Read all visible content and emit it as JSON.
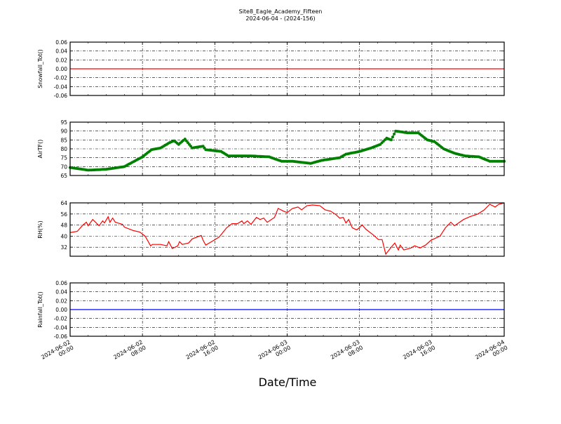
{
  "title": "Site8_Eagle_Academy_Fifteen",
  "subtitle": "2024-06-04 - (2024-156)",
  "xlabel": "Date/Time",
  "x_ticks": [
    {
      "hour": 0,
      "line1": "2024-06-02",
      "line2": "00:00"
    },
    {
      "hour": 8,
      "line1": "2024-06-02",
      "line2": "08:00"
    },
    {
      "hour": 16,
      "line1": "2024-06-02",
      "line2": "16:00"
    },
    {
      "hour": 24,
      "line1": "2024-06-03",
      "line2": "00:00"
    },
    {
      "hour": 32,
      "line1": "2024-06-03",
      "line2": "08:00"
    },
    {
      "hour": 40,
      "line1": "2024-06-03",
      "line2": "16:00"
    },
    {
      "hour": 48,
      "line1": "2024-06-04",
      "line2": "00:00"
    }
  ],
  "chart_data": [
    {
      "type": "line",
      "ylabel": "Snowfall_Tot()",
      "color": "#ff0000",
      "marker": false,
      "xlim": [
        0,
        48
      ],
      "ylim": [
        -0.06,
        0.06
      ],
      "yticks": [
        "0.06",
        "0.04",
        "0.02",
        "0.00",
        "-0.02",
        "-0.04",
        "-0.06"
      ],
      "grid": true,
      "x": [
        0,
        48
      ],
      "y": [
        0,
        0
      ]
    },
    {
      "type": "line",
      "ylabel": "AirTF()",
      "color": "#008000",
      "marker": true,
      "xlim": [
        0,
        48
      ],
      "ylim": [
        65,
        95
      ],
      "yticks": [
        "95",
        "90",
        "85",
        "80",
        "75",
        "70",
        "65"
      ],
      "grid": true,
      "x": [
        0,
        2,
        4,
        6,
        8,
        9,
        10,
        11,
        11.5,
        12,
        12.7,
        13.5,
        14.7,
        15,
        16.7,
        17.5,
        20,
        22,
        23.4,
        24.6,
        26.6,
        27.8,
        29.8,
        30.5,
        32,
        33.3,
        34.3,
        35,
        35.5,
        36,
        37.3,
        38.5,
        39.5,
        40.3,
        41.3,
        42.5,
        43.7,
        45.2,
        46.4,
        48
      ],
      "y": [
        69.5,
        68,
        68.5,
        70,
        75.5,
        79.5,
        80.5,
        83.5,
        84.5,
        82.5,
        85.5,
        80.5,
        81.5,
        79.5,
        78.5,
        76,
        76,
        75.5,
        73,
        73,
        71.8,
        73.5,
        75,
        77,
        78.5,
        80.5,
        82.5,
        86,
        85,
        90,
        89,
        89,
        85,
        84,
        80,
        77.5,
        76,
        75.5,
        73,
        73
      ]
    },
    {
      "type": "line",
      "ylabel": "RH(%)",
      "color": "#ff0000",
      "marker": false,
      "xlim": [
        0,
        48
      ],
      "ylim": [
        25.5,
        64
      ],
      "yticks": [
        "64",
        "56",
        "48",
        "40",
        "32"
      ],
      "grid": true,
      "x": [
        0,
        0.8,
        1.4,
        1.8,
        2,
        2.5,
        3.2,
        3.6,
        3.8,
        4.2,
        4.4,
        4.7,
        5,
        5.8,
        6,
        7,
        7.7,
        8.3,
        8.9,
        9.1,
        10,
        10.7,
        10.9,
        11.3,
        11.9,
        12.1,
        12.4,
        13.1,
        13.5,
        14.5,
        14.7,
        15,
        15.9,
        16.5,
        17.3,
        17.9,
        18.5,
        19,
        19.2,
        19.6,
        20,
        20.6,
        21,
        21.4,
        21.8,
        22.6,
        23,
        23.6,
        24,
        24.6,
        25.2,
        25.6,
        26.2,
        26.8,
        27.6,
        28.2,
        28.8,
        29.4,
        29.8,
        30.2,
        30.5,
        30.8,
        31.2,
        31.7,
        32.3,
        32.7,
        33.5,
        34.1,
        34.5,
        34.9,
        35.5,
        35.9,
        36.3,
        36.5,
        36.9,
        37.7,
        38.1,
        38.7,
        39.3,
        39.9,
        40.9,
        41.5,
        42.1,
        42.5,
        43.5,
        44.2,
        45.1,
        45.8,
        46.4,
        47,
        47.4,
        48
      ],
      "y": [
        42.5,
        43.5,
        48,
        50,
        47.5,
        52,
        47.5,
        51,
        49.5,
        54,
        50,
        53,
        50,
        48.5,
        46.5,
        44,
        43,
        40,
        33,
        34,
        34,
        33,
        36,
        31,
        33,
        36,
        34,
        35,
        38,
        40.5,
        37,
        33.5,
        37,
        39.5,
        46,
        49,
        49,
        51,
        49,
        51,
        48.5,
        53.5,
        52,
        53,
        50,
        53.5,
        60,
        58,
        57,
        60,
        61,
        59,
        62,
        62.5,
        62,
        59,
        58,
        55.5,
        53,
        53.5,
        49.5,
        52,
        46,
        44.5,
        48,
        45,
        41,
        37.5,
        37.5,
        27,
        32,
        35,
        30,
        33.5,
        30,
        31.5,
        33,
        31.5,
        33.5,
        37,
        40,
        46,
        50,
        47.5,
        52,
        54,
        56,
        59,
        63,
        61,
        63,
        64
      ]
    },
    {
      "type": "line",
      "ylabel": "Rainfall_Tot()",
      "color": "#0000ff",
      "marker": false,
      "xlim": [
        0,
        48
      ],
      "ylim": [
        -0.06,
        0.06
      ],
      "yticks": [
        "0.06",
        "0.04",
        "0.02",
        "0.00",
        "-0.02",
        "-0.04",
        "-0.06"
      ],
      "grid": true,
      "x": [
        0,
        48
      ],
      "y": [
        0,
        0
      ]
    }
  ]
}
